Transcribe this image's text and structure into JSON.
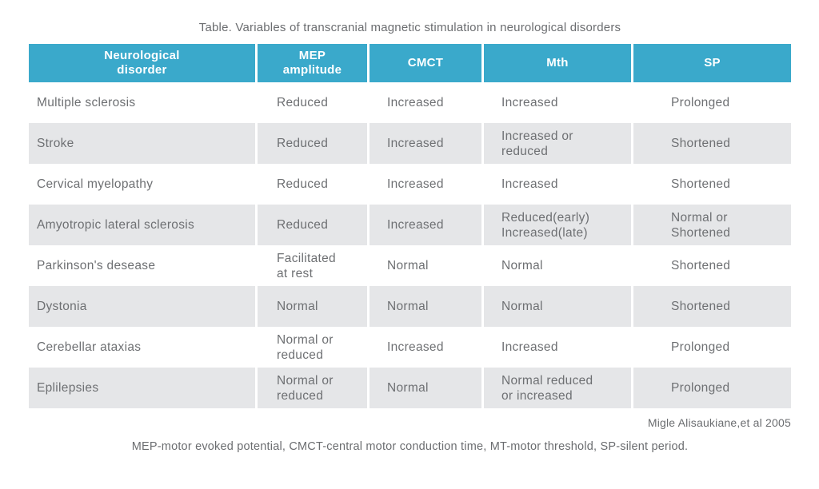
{
  "chart_data": {
    "type": "table",
    "title": "Table. Variables of transcranial magnetic stimulation in neurological disorders",
    "columns": [
      "Neurological\ndisorder",
      "MEP\namplitude",
      "CMCT",
      "Mth",
      "SP"
    ],
    "rows": [
      [
        "Multiple sclerosis",
        "Reduced",
        "Increased",
        "Increased",
        "Prolonged"
      ],
      [
        "Stroke",
        "Reduced",
        "Increased",
        "Increased or\nreduced",
        "Shortened"
      ],
      [
        "Cervical myelopathy",
        "Reduced",
        "Increased",
        "Increased",
        "Shortened"
      ],
      [
        "Amyotropic lateral sclerosis",
        "Reduced",
        "Increased",
        "Reduced(early)\nIncreased(late)",
        "Normal or\nShortened"
      ],
      [
        "Parkinson's desease",
        "Facilitated\nat rest",
        "Normal",
        "Normal",
        "Shortened"
      ],
      [
        "Dystonia",
        "Normal",
        "Normal",
        "Normal",
        "Shortened"
      ],
      [
        "Cerebellar ataxias",
        "Normal or\nreduced",
        "Increased",
        "Increased",
        "Prolonged"
      ],
      [
        "Eplilepsies",
        "Normal or\nreduced",
        "Normal",
        "Normal reduced\nor increased",
        "Prolonged"
      ]
    ],
    "source": "Migle Alisaukiane,et al 2005",
    "footnote": "MEP-motor evoked potential, CMCT-central motor conduction time, MT-motor threshold, SP-silent period.",
    "layout_hints": {
      "grid": "off",
      "row_striping": "even rows shaded",
      "header_position": "top"
    }
  },
  "colors": {
    "header_bg": "#3AA9CB",
    "header_text": "#FFFFFF",
    "row_alt_bg": "#E5E6E8",
    "body_text": "#6E7073",
    "muted_text": "#6B6D70",
    "separator": "#FFFFFF"
  }
}
